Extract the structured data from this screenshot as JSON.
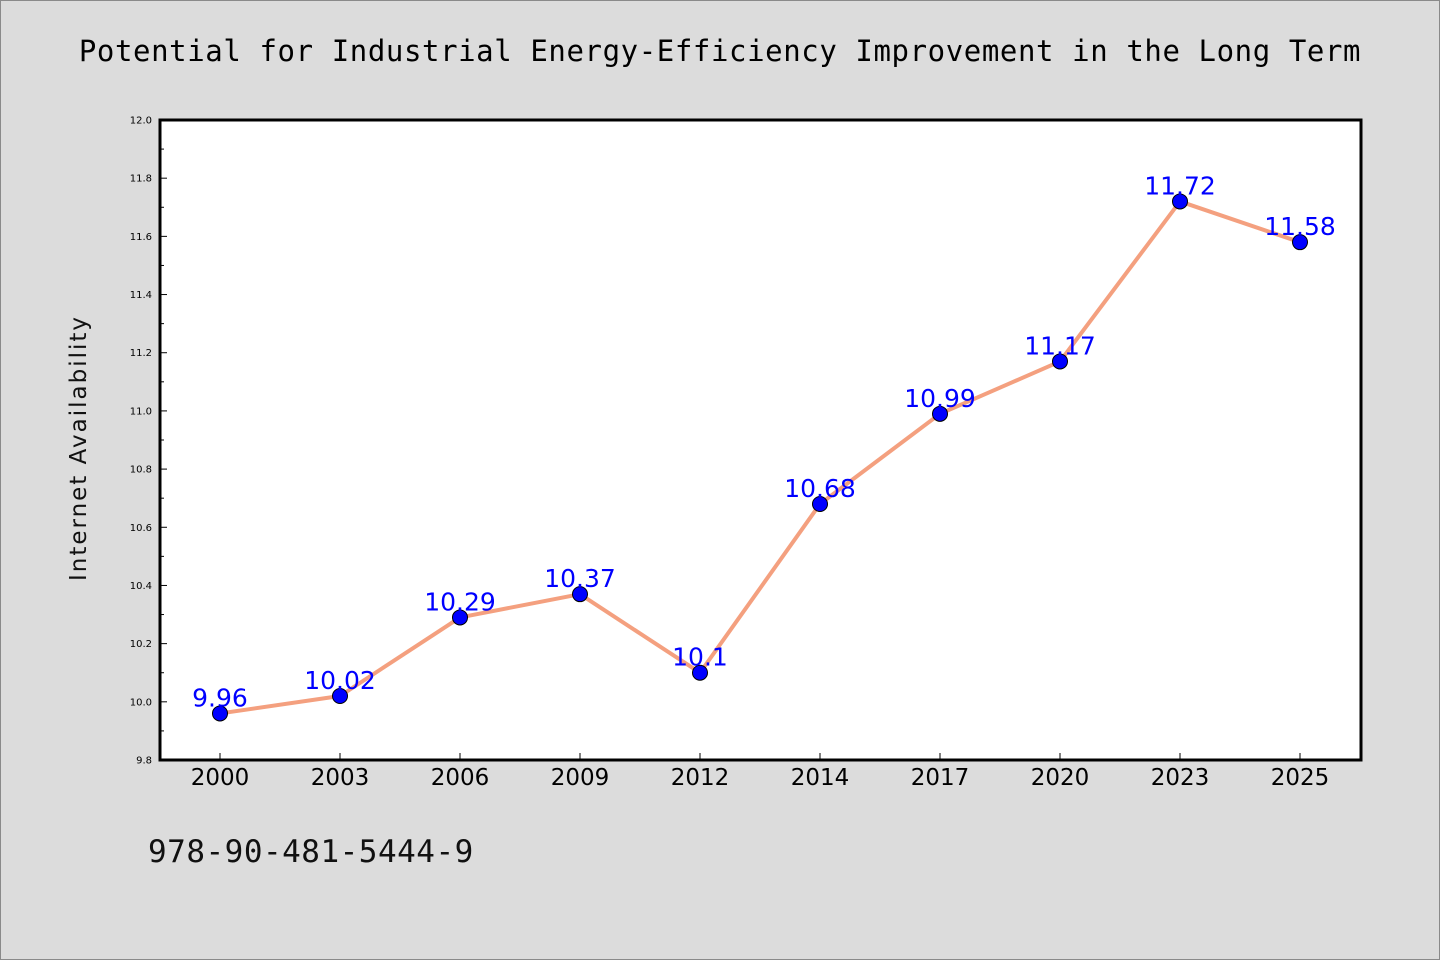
{
  "title": "Potential for Industrial Energy-Efficiency Improvement in the Long Term",
  "footer_text": "978-90-481-5444-9",
  "colors": {
    "background": "#dcdcdc",
    "plot_background": "#ffffff",
    "line": "#f4a07f",
    "marker": "#0000ff",
    "data_label": "#0000ff"
  },
  "chart_data": {
    "type": "line",
    "title": "Potential for Industrial Energy-Efficiency Improvement in the Long Term",
    "xlabel": "",
    "ylabel": "Internet Availability",
    "categories": [
      "2000",
      "2003",
      "2006",
      "2009",
      "2012",
      "2014",
      "2017",
      "2020",
      "2023",
      "2025"
    ],
    "series": [
      {
        "values": [
          9.96,
          10.02,
          10.29,
          10.37,
          10.1,
          10.68,
          10.99,
          11.17,
          11.72,
          11.58
        ],
        "labels": [
          "9.96",
          "10.02",
          "10.29",
          "10.37",
          "10.1",
          "10.68",
          "10.99",
          "11.17",
          "11.72",
          "11.58"
        ]
      }
    ],
    "ylim": [
      9.8,
      12.0
    ],
    "yticks": [
      "9.8",
      "10.0",
      "10.2",
      "10.4",
      "10.6",
      "10.8",
      "11.0",
      "11.2",
      "11.4",
      "11.6",
      "11.8",
      "12.0"
    ],
    "grid": false,
    "legend": "none"
  }
}
